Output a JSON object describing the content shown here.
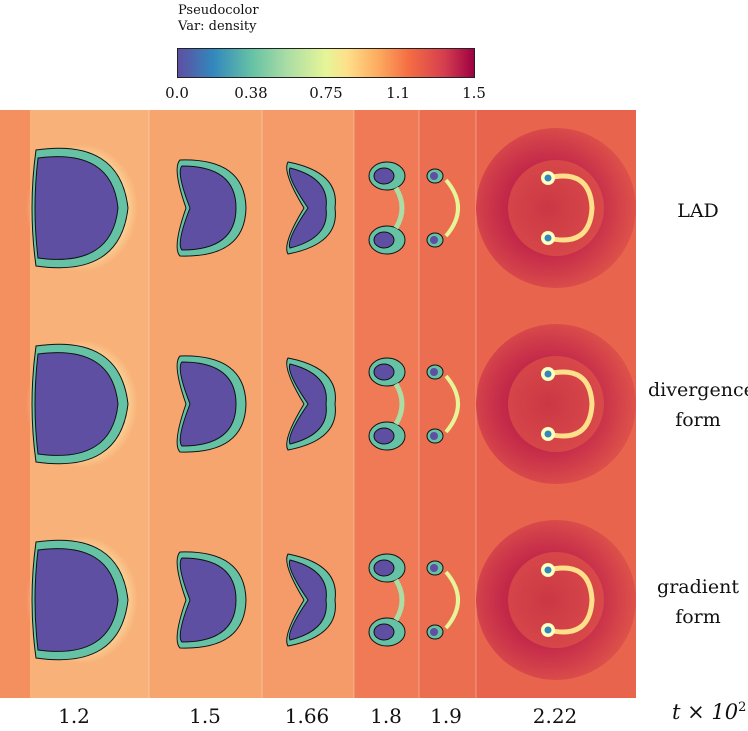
{
  "legend": {
    "line1": "Pseudocolor",
    "line2": "Var: density",
    "ticks": [
      "0.0",
      "0.38",
      "0.75",
      "1.1",
      "1.5"
    ]
  },
  "rows": [
    {
      "line1": "LAD",
      "line2": ""
    },
    {
      "line1": "divergence",
      "line2": "form"
    },
    {
      "line1": "gradient",
      "line2": "form"
    }
  ],
  "times": [
    "1.2",
    "1.5",
    "1.66",
    "1.8",
    "1.9",
    "2.22"
  ],
  "time_axis": {
    "label": "t",
    "operator": "× 10",
    "exponent": "2"
  },
  "colors": {
    "low": "#5e4fa2",
    "mid": "#fee08b",
    "high": "#9e0142",
    "background": "#f8b178"
  }
}
